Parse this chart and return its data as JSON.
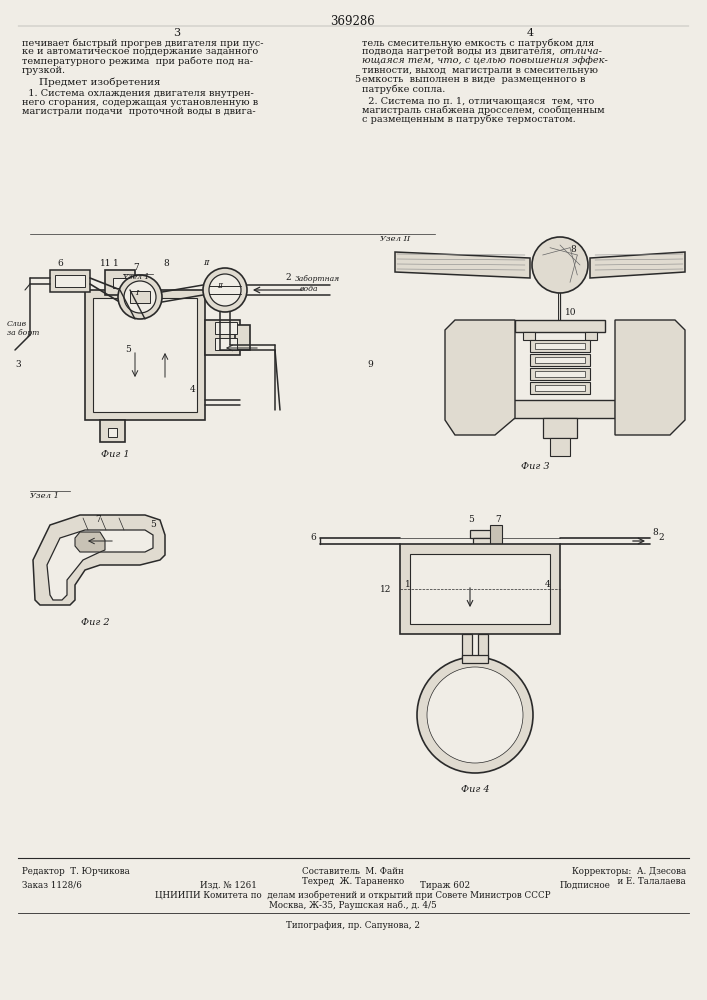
{
  "patent_number": "369286",
  "background_color": "#f0ede6",
  "text_color": "#1a1a1a",
  "title_text": "369286",
  "col3_header": "3",
  "col4_header": "4",
  "col3_text": [
    "печивает быстрый прогрев двигателя при пус-",
    "ке и автоматическое поддержание заданного",
    "температурного режима  при работе под на-",
    "грузкой."
  ],
  "predmet_header": "Предмет изобретения",
  "claim1_text": [
    "  1. Система охлаждения двигателя внутрен-",
    "него сгорания, содержащая установленную в",
    "магистрали подачи  проточной воды в двига-"
  ],
  "col4_text": [
    "тель смесительную емкость с патрубком для",
    "подвода нагретой воды из двигателя, отлича-",
    "ющаяся тем, что, с целью повышения эффек-",
    "тивности, выход  магистрали в смесительную"
  ],
  "col4_line5_num": "5",
  "col4_text2": [
    "емкость  выполнен в виде  размещенного в",
    "патрубке сопла."
  ],
  "claim2_text": [
    "  2. Система по п. 1, отличающаяся  тем, что",
    "магистраль снабжена дросселем, сообщенным",
    "с размещенным в патрубке термостатом."
  ],
  "fig1_label": "Фиг 1",
  "fig2_label": "Фиг 2",
  "fig3_label": "Фиг 3",
  "fig4_label": "Фиг 4",
  "uzel1_label": "Узел 1",
  "uzel2_label": "Узел II",
  "footer_editor": "Редактор  Т. Юрчикова",
  "footer_author": "Составитель  М. Файн",
  "footer_tech": "Техред  Ж. Тараненко",
  "footer_corr": "Корректоры:  А. Дзесова",
  "footer_corr2": "                      и Е. Талалаева",
  "footer_order": "Заказ 1128/6",
  "footer_izd": "Изд. № 1261",
  "footer_tiraz": "Тираж 602",
  "footer_podp": "Подписное",
  "footer_org": "ЦНИИПИ Комитета по  делам изобретений и открытий при Совете Министров СССР",
  "footer_addr": "Москва, Ж-35, Раушская наб., д. 4/5",
  "footer_print": "Типография, пр. Сапунова, 2",
  "draw_color": "#2a2a2a",
  "fill_light": "#e0dbd0",
  "fill_mid": "#c8c2b5",
  "fill_dark": "#b0a898"
}
